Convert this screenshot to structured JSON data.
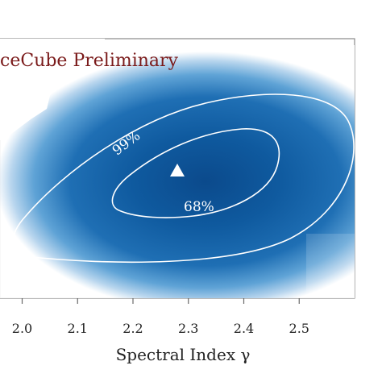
{
  "chart_data": {
    "type": "heatmap",
    "title": "",
    "watermark": "ceCube Preliminary",
    "xlabel": "Spectral Index γ",
    "ylabel": "",
    "xlim": [
      1.96,
      2.6
    ],
    "x_ticks": [
      "2.0",
      "2.1",
      "2.2",
      "2.3",
      "2.4",
      "2.5"
    ],
    "x_tick_values": [
      2.0,
      2.1,
      2.2,
      2.3,
      2.4,
      2.5
    ],
    "colormap": [
      "#ffffff",
      "#c6ddf0",
      "#5fa3d6",
      "#1f6fb4",
      "#0b4a8c"
    ],
    "best_fit": {
      "x": 2.28,
      "marker": "triangle-up",
      "color": "#ffffff"
    },
    "contours": [
      {
        "label": "68%",
        "level": 0.68,
        "color": "#ffffff"
      },
      {
        "label": "99%",
        "level": 0.99,
        "color": "#ffffff"
      }
    ],
    "watermark_color": "#7a1a1a",
    "grid": false
  }
}
